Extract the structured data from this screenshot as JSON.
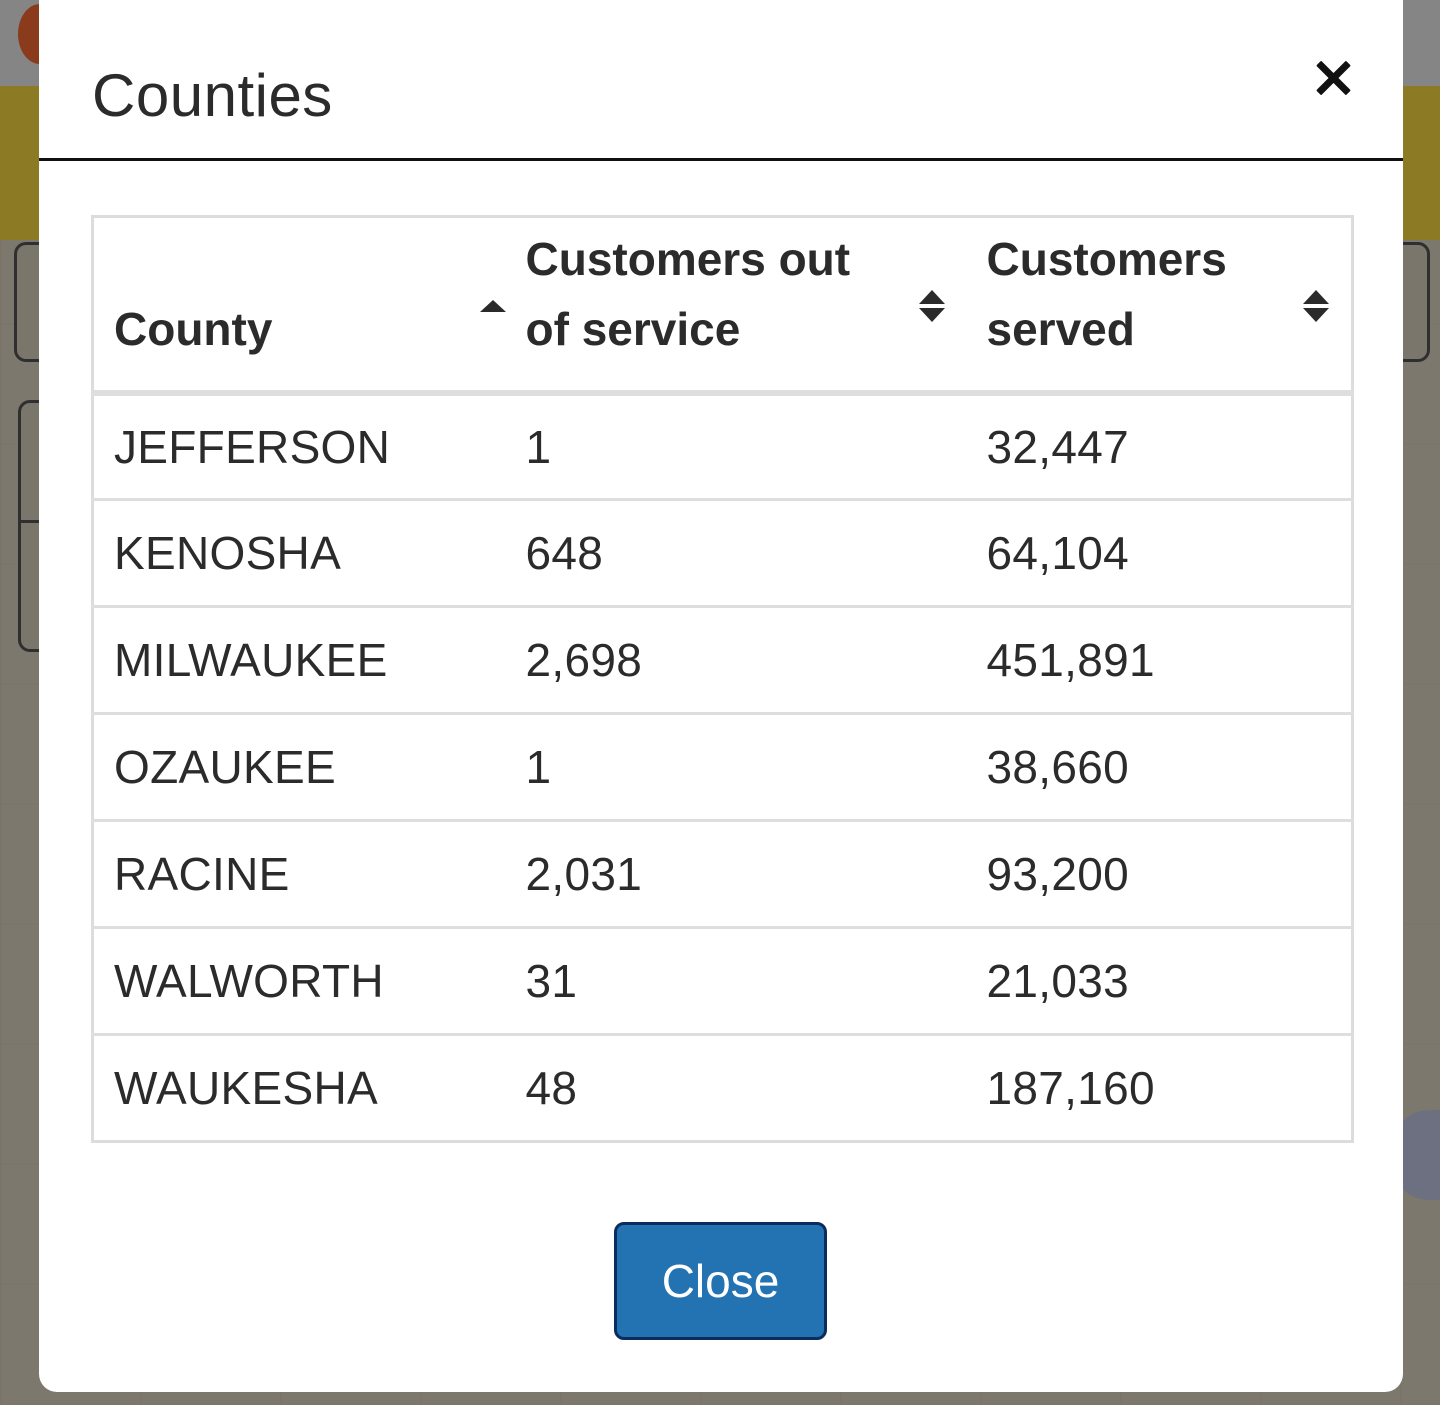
{
  "modal": {
    "title": "Counties",
    "close_icon": "close-icon",
    "close_button_label": "Close"
  },
  "table": {
    "columns": [
      {
        "label": "County",
        "sort": "ascending"
      },
      {
        "label": "Customers out of service",
        "sort": "unsorted"
      },
      {
        "label": "Customers served",
        "sort": "unsorted"
      }
    ],
    "rows": [
      {
        "county": "JEFFERSON",
        "out_of_service": "1",
        "served": "32,447"
      },
      {
        "county": "KENOSHA",
        "out_of_service": "648",
        "served": "64,104"
      },
      {
        "county": "MILWAUKEE",
        "out_of_service": "2,698",
        "served": "451,891"
      },
      {
        "county": "OZAUKEE",
        "out_of_service": "1",
        "served": "38,660"
      },
      {
        "county": "RACINE",
        "out_of_service": "2,031",
        "served": "93,200"
      },
      {
        "county": "WALWORTH",
        "out_of_service": "31",
        "served": "21,033"
      },
      {
        "county": "WAUKESHA",
        "out_of_service": "48",
        "served": "187,160"
      }
    ]
  },
  "colors": {
    "button_bg": "#2372b2",
    "button_border": "#0a2d5e",
    "overlay": "#7f7b70",
    "banner": "#8c7a24"
  }
}
